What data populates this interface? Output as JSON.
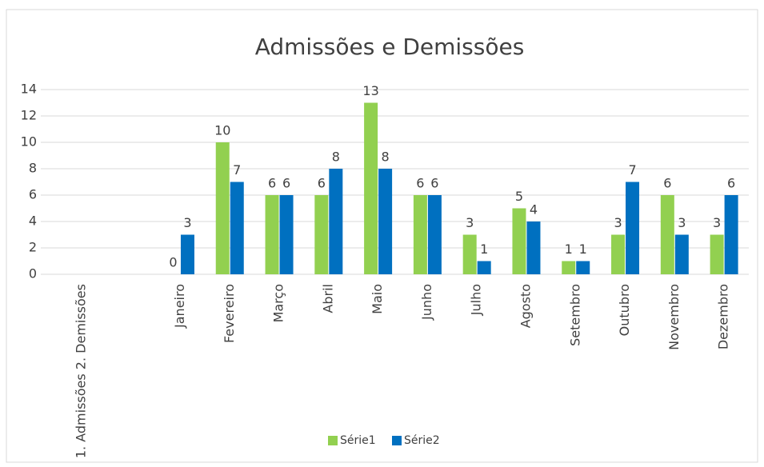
{
  "chart_data": {
    "type": "bar",
    "title": "Admissões e Demissões",
    "categories": [
      "1. Admissões 2. Demissões",
      null,
      "Janeiro",
      "Fevereiro",
      "Março",
      "Abril",
      "Maio",
      "Junho",
      "Julho",
      "Agosto",
      "Setembro",
      "Outubro",
      "Novembro",
      "Dezembro"
    ],
    "series": [
      {
        "name": "Série1",
        "color": "#92d050",
        "values": [
          null,
          null,
          0,
          10,
          6,
          6,
          13,
          6,
          3,
          5,
          1,
          3,
          6,
          3
        ]
      },
      {
        "name": "Série2",
        "color": "#0070c0",
        "values": [
          null,
          null,
          3,
          7,
          6,
          8,
          8,
          6,
          1,
          4,
          1,
          7,
          3,
          6
        ]
      }
    ],
    "ylim": [
      0,
      14
    ],
    "yticks": [
      0,
      2,
      4,
      6,
      8,
      10,
      12,
      14
    ],
    "grid": true,
    "legend": "bottom"
  }
}
